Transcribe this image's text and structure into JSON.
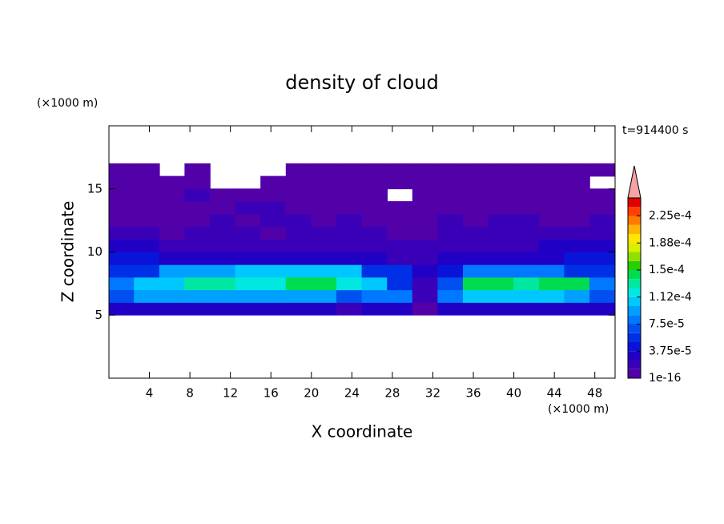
{
  "chart_data": {
    "type": "contour",
    "title": "density of cloud",
    "x_label": "X coordinate",
    "y_label": "Z coordinate",
    "x_unit": "(×1000 m)",
    "y_unit": "(×1000 m)",
    "annotation": "t=914400 s",
    "xlim": [
      0,
      50
    ],
    "ylim": [
      0,
      20
    ],
    "xticks": [
      4,
      8,
      12,
      16,
      20,
      24,
      28,
      32,
      36,
      40,
      44,
      48
    ],
    "yticks": [
      5,
      10,
      15
    ],
    "x": [
      1.25,
      3.75,
      6.25,
      8.75,
      11.25,
      13.75,
      16.25,
      18.75,
      21.25,
      23.75,
      26.25,
      28.75,
      31.25,
      33.75,
      36.25,
      38.75,
      41.25,
      43.75,
      46.25,
      48.75
    ],
    "z": [
      5.5,
      6.5,
      7.5,
      8.5,
      9.5,
      10.5,
      11.5,
      12.5,
      13.5,
      14.5,
      15.5,
      16.5
    ],
    "values": [
      [
        3e-05,
        3e-05,
        3e-05,
        3e-05,
        3e-05,
        3e-05,
        3e-05,
        3e-05,
        3e-05,
        2e-05,
        3e-05,
        3e-05,
        1e-05,
        3e-05,
        3e-05,
        3e-05,
        3e-05,
        3e-05,
        3e-05,
        3e-05
      ],
      [
        7e-05,
        9e-05,
        9e-05,
        9e-05,
        9e-05,
        9.5e-05,
        9.5e-05,
        9.5e-05,
        9.5e-05,
        7e-05,
        8e-05,
        8e-05,
        2e-05,
        8e-05,
        0.0001,
        0.0001,
        0.0001,
        0.0001,
        9e-05,
        7e-05
      ],
      [
        8e-05,
        0.00011,
        0.00011,
        0.000135,
        0.000135,
        0.000115,
        0.000115,
        0.00014,
        0.00014,
        0.00012,
        0.0001,
        6e-05,
        2e-05,
        7e-05,
        0.00014,
        0.00014,
        0.00013,
        0.00014,
        0.00014,
        8e-05
      ],
      [
        6e-05,
        6e-05,
        9e-05,
        9e-05,
        9e-05,
        0.00011,
        0.00011,
        0.00011,
        0.00011,
        0.00011,
        5e-05,
        5e-05,
        3e-05,
        4e-05,
        8e-05,
        8e-05,
        8e-05,
        8e-05,
        6e-05,
        5e-05
      ],
      [
        4e-05,
        4e-05,
        3e-05,
        3e-05,
        3e-05,
        3e-05,
        3e-05,
        3e-05,
        3e-05,
        3e-05,
        3e-05,
        2e-05,
        2e-05,
        3e-05,
        3e-05,
        3e-05,
        3e-05,
        3e-05,
        4e-05,
        4e-05
      ],
      [
        3e-05,
        2.5e-05,
        2e-05,
        2e-05,
        2e-05,
        2e-05,
        2e-05,
        2e-05,
        2e-05,
        2e-05,
        2e-05,
        2e-05,
        1.5e-05,
        2e-05,
        2e-05,
        2e-05,
        2e-05,
        2.5e-05,
        3e-05,
        3e-05
      ],
      [
        1.5e-05,
        1.5e-05,
        5e-06,
        1.5e-05,
        1.5e-05,
        1.5e-05,
        5e-06,
        1.5e-05,
        1.5e-05,
        1.5e-05,
        1.5e-05,
        5e-06,
        5e-06,
        1.5e-05,
        1.5e-05,
        1.5e-05,
        1.5e-05,
        1.5e-05,
        2e-05,
        2e-05
      ],
      [
        5e-06,
        5e-06,
        5e-06,
        5e-06,
        1.5e-05,
        5e-06,
        1.5e-05,
        1.5e-05,
        5e-06,
        1.5e-05,
        5e-06,
        5e-06,
        5e-06,
        1.5e-05,
        5e-06,
        1.5e-05,
        1.5e-05,
        5e-06,
        5e-06,
        1.5e-05
      ],
      [
        5e-06,
        5e-06,
        5e-06,
        5e-06,
        5e-06,
        1.5e-05,
        1.5e-05,
        5e-06,
        5e-06,
        5e-06,
        5e-06,
        5e-06,
        5e-06,
        5e-06,
        5e-06,
        5e-06,
        5e-06,
        5e-06,
        5e-06,
        5e-06
      ],
      [
        5e-06,
        5e-06,
        5e-06,
        1.5e-05,
        5e-06,
        5e-06,
        5e-06,
        5e-06,
        5e-06,
        5e-06,
        5e-06,
        null,
        5e-06,
        5e-06,
        5e-06,
        5e-06,
        5e-06,
        5e-06,
        5e-06,
        5e-06
      ],
      [
        5e-06,
        5e-06,
        5e-06,
        5e-06,
        null,
        null,
        5e-06,
        5e-06,
        5e-06,
        5e-06,
        5e-06,
        5e-06,
        5e-06,
        5e-06,
        5e-06,
        5e-06,
        5e-06,
        5e-06,
        5e-06,
        null
      ],
      [
        5e-06,
        5e-06,
        null,
        5e-06,
        null,
        null,
        null,
        5e-06,
        5e-06,
        5e-06,
        5e-06,
        5e-06,
        5e-06,
        5e-06,
        5e-06,
        5e-06,
        5e-06,
        5e-06,
        5e-06,
        5e-06
      ]
    ],
    "levels": [
      1e-16,
      1.25e-05,
      2.5e-05,
      3.75e-05,
      5e-05,
      6.25e-05,
      7.5e-05,
      8.75e-05,
      0.0001,
      0.0001125,
      0.000125,
      0.0001375,
      0.00015,
      0.0001625,
      0.000175,
      0.0001875,
      0.0002,
      0.0002125,
      0.000225,
      0.0002375,
      0.00025
    ],
    "colors": [
      "#5200a8",
      "#3a00b8",
      "#2000c4",
      "#0a14d8",
      "#0030e6",
      "#0050f0",
      "#0078ff",
      "#00a0ff",
      "#00c8ff",
      "#00e8e0",
      "#00e8a0",
      "#00dc50",
      "#28d000",
      "#90e000",
      "#d8f000",
      "#ffe600",
      "#ffb400",
      "#ff7a00",
      "#ff4000",
      "#e00000"
    ],
    "extend_color": "#f4a4a4",
    "colorbar_ticks": [
      {
        "value": 1e-16,
        "label": "1e-16"
      },
      {
        "value": 3.75e-05,
        "label": "3.75e-5"
      },
      {
        "value": 7.5e-05,
        "label": "7.5e-5"
      },
      {
        "value": 0.0001125,
        "label": "1.12e-4"
      },
      {
        "value": 0.00015,
        "label": "1.5e-4"
      },
      {
        "value": 0.0001875,
        "label": "1.88e-4"
      },
      {
        "value": 0.000225,
        "label": "2.25e-4"
      }
    ]
  }
}
